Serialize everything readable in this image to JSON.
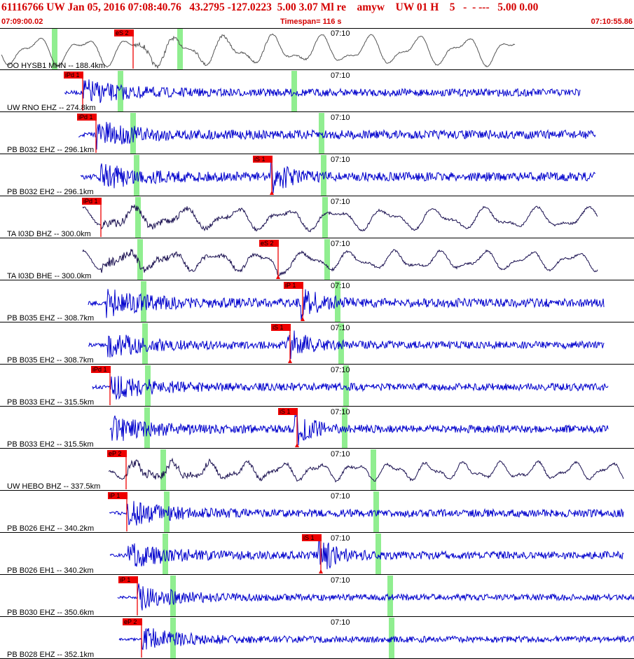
{
  "header": {
    "title": "61116766 UW Jan 05, 2016 07:08:40.76   43.2795 -127.0223  5.00 3.07 Ml re    amyw    UW 01 H    5   -  - ---   5.00 0.00",
    "start_time": "07:09:00.02",
    "timespan": "Timespan= 116 s",
    "end_time": "07:10:55.86"
  },
  "colors": {
    "header_text": "#d40000",
    "trace_blue": "#0000cc",
    "trace_dark": "#1a1050",
    "trace_gray": "#555555",
    "pick_flag": "#ee0000",
    "green_marker": "#90ee90"
  },
  "tick_label": "07:10",
  "traces": [
    {
      "label": "OO HYSB1 MHN -- 188.4km",
      "pick": "eS 2",
      "style": "gray"
    },
    {
      "label": "UW RNO EHZ -- 274.8km",
      "pick": "iPd 1",
      "style": "blue"
    },
    {
      "label": "PB B032 EHZ -- 296.1km",
      "pick": "iPd 1",
      "style": "blue"
    },
    {
      "label": "PB B032 EH2 -- 296.1km",
      "pick": "iS 1",
      "style": "blue"
    },
    {
      "label": "TA I03D BHZ -- 300.0km",
      "pick": "iPd 1",
      "style": "dark"
    },
    {
      "label": "TA I03D BHE -- 300.0km",
      "pick": "eS 2",
      "style": "dark"
    },
    {
      "label": "PB B035 EHZ -- 308.7km",
      "pick": "iP 1",
      "style": "blue"
    },
    {
      "label": "PB B035 EH2 -- 308.7km",
      "pick": "iS 1",
      "style": "blue"
    },
    {
      "label": "PB B033 EHZ -- 315.5km",
      "pick": "iPd 1",
      "style": "blue"
    },
    {
      "label": "PB B033 EH2 -- 315.5km",
      "pick": "iS 1",
      "style": "blue"
    },
    {
      "label": "UW HEBO BHZ -- 337.5km",
      "pick": "eP 2",
      "style": "dark"
    },
    {
      "label": "PB B026 EHZ -- 340.2km",
      "pick": "iP 1",
      "style": "blue"
    },
    {
      "label": "PB B026 EH1 -- 340.2km",
      "pick": "iS 1",
      "style": "blue"
    },
    {
      "label": "PB B030 EHZ -- 350.6km",
      "pick": "iP 1",
      "style": "blue"
    },
    {
      "label": "PB B028 EHZ -- 352.1km",
      "pick": "eP 2",
      "style": "blue"
    }
  ]
}
